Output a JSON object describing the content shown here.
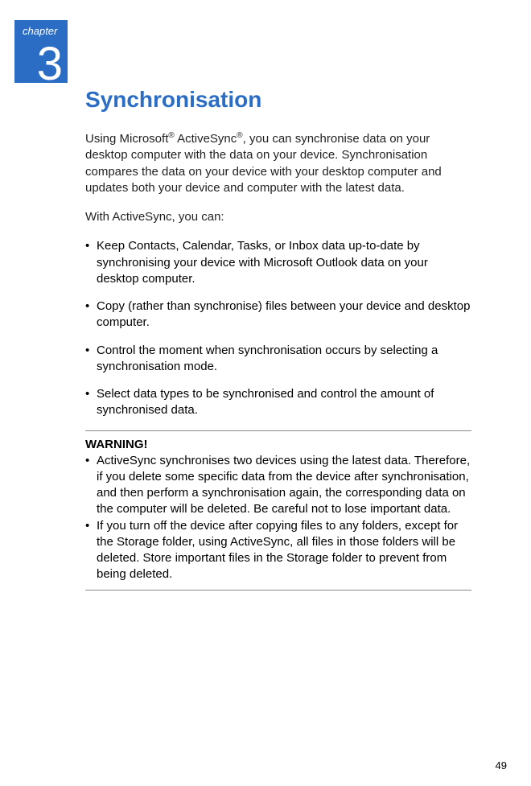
{
  "chapter": {
    "label": "chapter",
    "number": "3"
  },
  "title": "Synchronisation",
  "intro1a": "Using Microsoft",
  "intro1b": " ActiveSync",
  "intro1c": ", you can synchronise data on your desktop computer with the data on your device. Synchronisation compares the data on your device with your desktop computer and updates both your device and computer with the latest data.",
  "intro2": "With ActiveSync, you can:",
  "bullets": [
    "Keep Contacts, Calendar, Tasks, or Inbox data up-to-date by synchronising your device with Microsoft Outlook data on your desktop computer.",
    "Copy (rather than synchronise) files between your device and desktop computer.",
    "Control the moment when synchronisation occurs by selecting a synchronisation mode.",
    "Select data types to be synchronised and control the amount of synchronised data."
  ],
  "warning": {
    "head": "WARNING!",
    "items": [
      "ActiveSync synchronises two devices using the latest data. Therefore, if you delete some specific data from the device after synchronisation, and then perform a synchronisation again, the corresponding data on the computer will be deleted. Be careful not to lose important data.",
      "If you turn off the device after copying files to any folders, except for the Storage folder, using ActiveSync, all files in those folders will be deleted. Store important files in the Storage folder to prevent from being deleted."
    ]
  },
  "reg": "®",
  "bullet_char": "•",
  "page_number": "49",
  "colors": {
    "accent": "#2b6cc4",
    "text": "#222222",
    "rule": "#888888",
    "bg": "#ffffff"
  }
}
